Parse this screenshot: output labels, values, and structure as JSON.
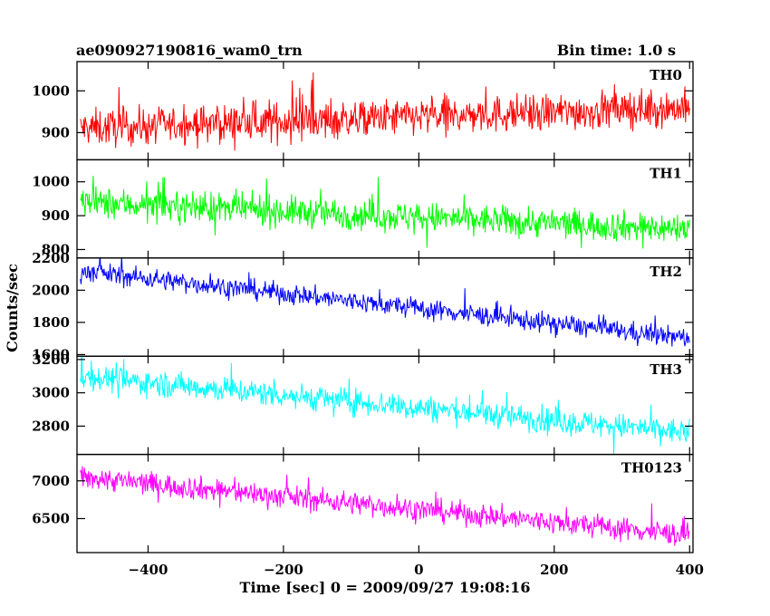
{
  "header": {
    "title": "ae090927190816_wam0_trn",
    "bin_time": "Bin time: 1.0 s"
  },
  "chart_data": {
    "type": "line",
    "xlabel": "Time [sec] 0 = 2009/09/27 19:08:16",
    "ylabel": "Counts/sec",
    "xlim": [
      -505,
      405
    ],
    "x_ticks": [
      -400,
      -200,
      0,
      200,
      400
    ],
    "x_step": 1,
    "grid": false,
    "panels": [
      {
        "name": "TH0",
        "color": "#ff0000",
        "ylim": [
          835,
          1070
        ],
        "y_ticks": [
          900,
          1000
        ],
        "start_value": 910,
        "end_value": 960,
        "noise": 32,
        "spike_prob": 0.05,
        "spike_amp": 70
      },
      {
        "name": "TH1",
        "color": "#00ff00",
        "ylim": [
          775,
          1065
        ],
        "y_ticks": [
          800,
          900,
          1000
        ],
        "start_value": 940,
        "end_value": 860,
        "noise": 32,
        "spike_prob": 0.04,
        "spike_amp": 70
      },
      {
        "name": "TH2",
        "color": "#0000ff",
        "ylim": [
          1590,
          2200
        ],
        "y_ticks": [
          1600,
          1800,
          2000,
          2200
        ],
        "start_value": 2120,
        "end_value": 1700,
        "noise": 45,
        "spike_prob": 0.03,
        "spike_amp": 110
      },
      {
        "name": "TH3",
        "color": "#00ffff",
        "ylim": [
          2630,
          3220
        ],
        "y_ticks": [
          2800,
          3000,
          3200
        ],
        "start_value": 3100,
        "end_value": 2760,
        "noise": 55,
        "spike_prob": 0.03,
        "spike_amp": 140
      },
      {
        "name": "TH0123",
        "color": "#ff00ff",
        "ylim": [
          6050,
          7350
        ],
        "y_ticks": [
          6500,
          7000
        ],
        "start_value": 7050,
        "end_value": 6280,
        "noise": 110,
        "spike_prob": 0.03,
        "spike_amp": 260
      }
    ]
  }
}
